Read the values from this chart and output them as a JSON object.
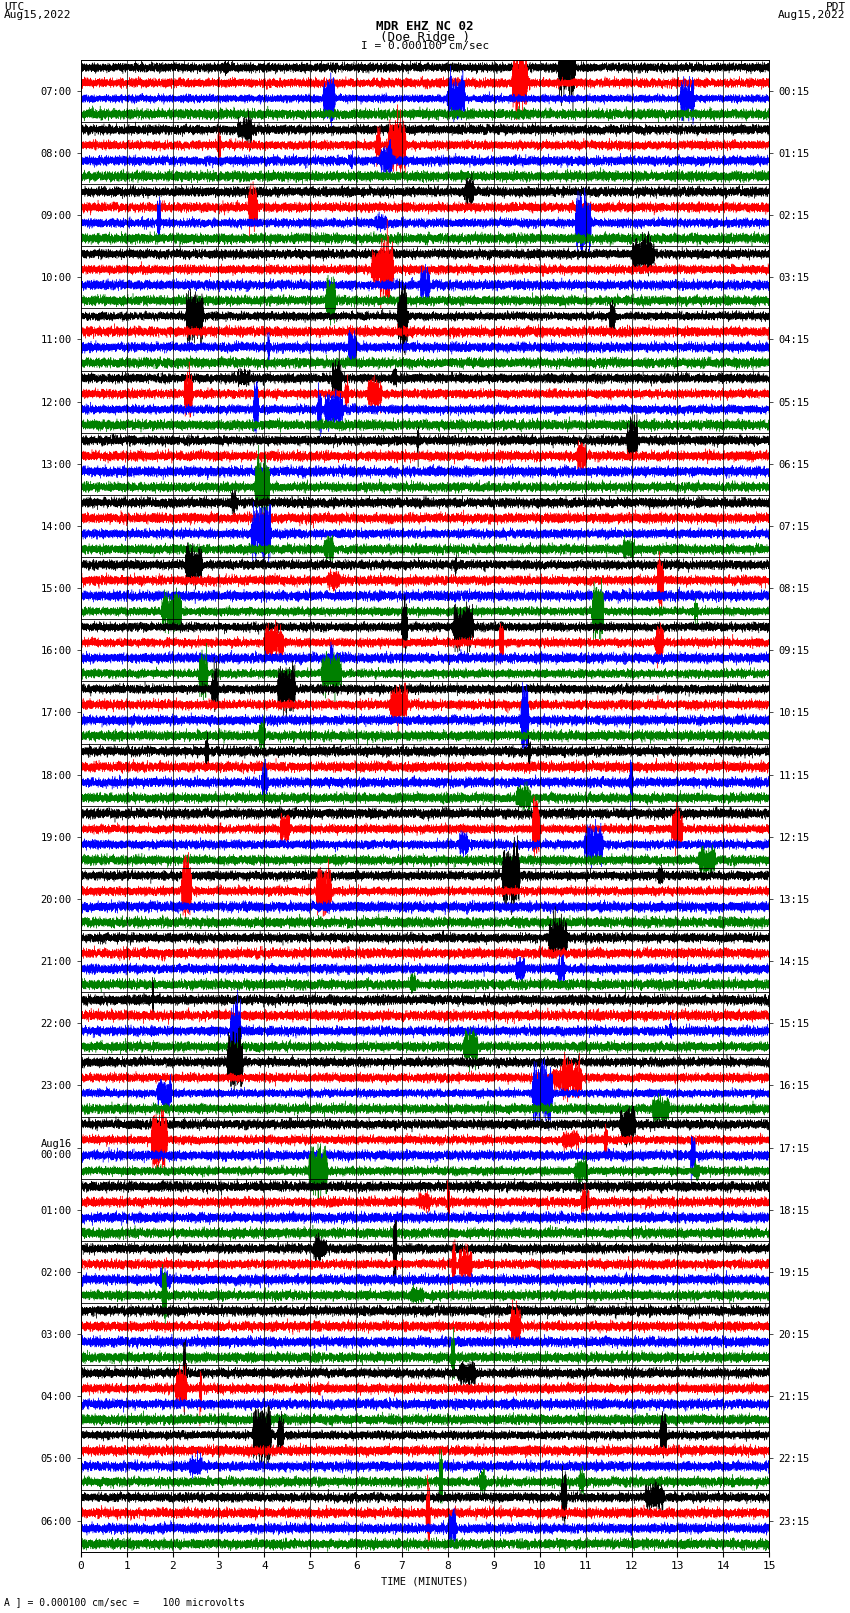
{
  "title_line1": "MDR EHZ NC 02",
  "title_line2": "(Doe Ridge )",
  "scale_label": "I = 0.000100 cm/sec",
  "utc_label": "UTC\nAug15,2022",
  "pdt_label": "PDT\nAug15,2022",
  "xlabel": "TIME (MINUTES)",
  "footer_label": "A ] = 0.000100 cm/sec =    100 microvolts",
  "left_times": [
    "07:00",
    "08:00",
    "09:00",
    "10:00",
    "11:00",
    "12:00",
    "13:00",
    "14:00",
    "15:00",
    "16:00",
    "17:00",
    "18:00",
    "19:00",
    "20:00",
    "21:00",
    "22:00",
    "23:00",
    "Aug16\n00:00",
    "01:00",
    "02:00",
    "03:00",
    "04:00",
    "05:00",
    "06:00"
  ],
  "right_times": [
    "00:15",
    "01:15",
    "02:15",
    "03:15",
    "04:15",
    "05:15",
    "06:15",
    "07:15",
    "08:15",
    "09:15",
    "10:15",
    "11:15",
    "12:15",
    "13:15",
    "14:15",
    "15:15",
    "16:15",
    "17:15",
    "18:15",
    "19:15",
    "20:15",
    "21:15",
    "22:15",
    "23:15"
  ],
  "n_rows": 24,
  "traces_per_row": 4,
  "colors": [
    "black",
    "red",
    "blue",
    "green"
  ],
  "xlim": [
    0,
    15
  ],
  "bg_color": "white",
  "title_fontsize": 9,
  "label_fontsize": 7.5,
  "tick_fontsize": 8,
  "n_minutes": 15,
  "sample_rate": 20,
  "noise_seed": 42
}
